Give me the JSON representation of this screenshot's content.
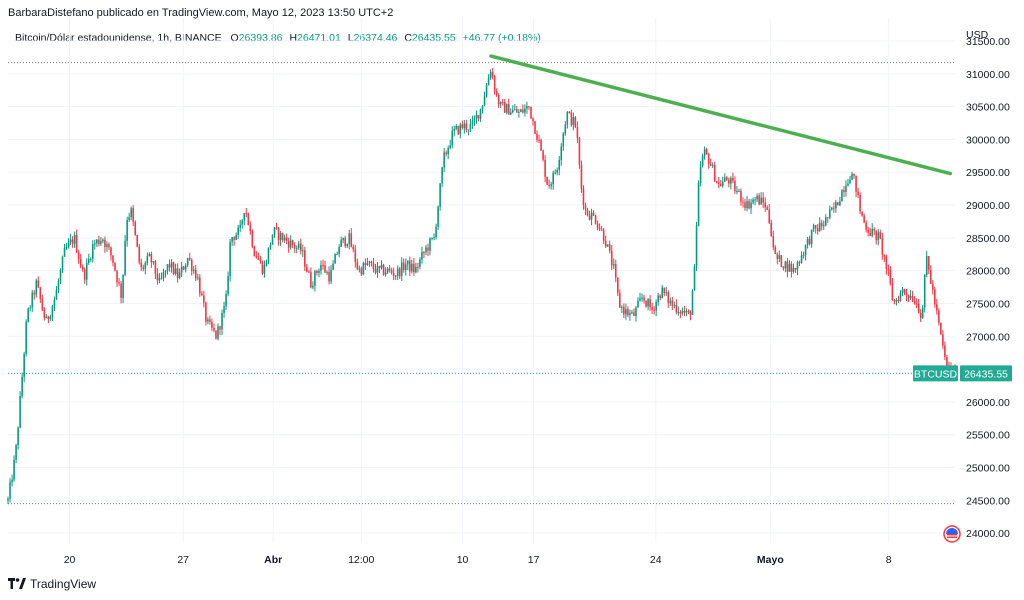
{
  "header": {
    "publisher_line": "BarbaraDistefano publicado en TradingView.com, Mayo 12, 2023 13:50 UTC+2"
  },
  "legend": {
    "symbol": "Bitcoin/Dólar estadounidense, 1h, BINANCE",
    "o_label": "O",
    "o_value": "26393.86",
    "h_label": "H",
    "h_value": "26471.01",
    "l_label": "L",
    "l_value": "26374.46",
    "c_label": "C",
    "c_value": "26435.55",
    "change": "+46.77 (+0.18%)"
  },
  "footer": {
    "brand": "TradingView"
  },
  "colors": {
    "up": "#089981",
    "down": "#f23645",
    "trendline": "#4caf50",
    "last_price": "#22ab94",
    "grid": "#f0f3fa"
  },
  "chart_data": {
    "type": "candlestick",
    "symbol": "BTCUSD",
    "currency": "USD",
    "timeframe": "1h",
    "y_ticks": [
      "31500.00",
      "31000.00",
      "30500.00",
      "30000.00",
      "29500.00",
      "29000.00",
      "28500.00",
      "28000.00",
      "27500.00",
      "27000.00",
      "26500.00",
      "26000.00",
      "25500.00",
      "25000.00",
      "24500.00",
      "24000.00"
    ],
    "ylim": [
      23850,
      31850
    ],
    "x_labels": [
      "20",
      "27",
      "Abr",
      "12:00",
      "10",
      "17",
      "24",
      "Mayo",
      "8"
    ],
    "x_label_pos": [
      0.065,
      0.185,
      0.28,
      0.373,
      0.48,
      0.555,
      0.684,
      0.805,
      0.93
    ],
    "last_price": 26435.55,
    "last_price_label": "26435.55",
    "symbol_tag": "BTCUSD",
    "dotted_levels": [
      31170,
      26435.55,
      24450
    ],
    "trendline": [
      [
        0.51,
        31270
      ],
      [
        0.995,
        29480
      ]
    ],
    "path": [
      [
        0.0,
        24500
      ],
      [
        0.008,
        25200
      ],
      [
        0.015,
        26400
      ],
      [
        0.02,
        27300
      ],
      [
        0.03,
        27800
      ],
      [
        0.04,
        27200
      ],
      [
        0.05,
        27600
      ],
      [
        0.06,
        28300
      ],
      [
        0.07,
        28500
      ],
      [
        0.08,
        27900
      ],
      [
        0.09,
        28400
      ],
      [
        0.1,
        28500
      ],
      [
        0.11,
        28200
      ],
      [
        0.12,
        27600
      ],
      [
        0.125,
        28800
      ],
      [
        0.13,
        28900
      ],
      [
        0.14,
        28000
      ],
      [
        0.15,
        28200
      ],
      [
        0.16,
        27800
      ],
      [
        0.17,
        28100
      ],
      [
        0.18,
        27900
      ],
      [
        0.19,
        28200
      ],
      [
        0.2,
        27900
      ],
      [
        0.21,
        27200
      ],
      [
        0.22,
        27000
      ],
      [
        0.23,
        27500
      ],
      [
        0.235,
        28500
      ],
      [
        0.245,
        28600
      ],
      [
        0.25,
        29000
      ],
      [
        0.26,
        28300
      ],
      [
        0.27,
        28000
      ],
      [
        0.28,
        28600
      ],
      [
        0.29,
        28500
      ],
      [
        0.3,
        28400
      ],
      [
        0.31,
        28300
      ],
      [
        0.32,
        27800
      ],
      [
        0.33,
        28100
      ],
      [
        0.34,
        27900
      ],
      [
        0.35,
        28400
      ],
      [
        0.36,
        28500
      ],
      [
        0.37,
        28000
      ],
      [
        0.38,
        28100
      ],
      [
        0.39,
        28000
      ],
      [
        0.4,
        28000
      ],
      [
        0.41,
        27950
      ],
      [
        0.42,
        28100
      ],
      [
        0.43,
        28000
      ],
      [
        0.44,
        28300
      ],
      [
        0.45,
        28500
      ],
      [
        0.455,
        29100
      ],
      [
        0.46,
        29700
      ],
      [
        0.47,
        30100
      ],
      [
        0.48,
        30200
      ],
      [
        0.49,
        30200
      ],
      [
        0.5,
        30500
      ],
      [
        0.51,
        31100
      ],
      [
        0.515,
        30700
      ],
      [
        0.52,
        30500
      ],
      [
        0.53,
        30450
      ],
      [
        0.54,
        30400
      ],
      [
        0.55,
        30500
      ],
      [
        0.56,
        30000
      ],
      [
        0.57,
        29300
      ],
      [
        0.575,
        29400
      ],
      [
        0.58,
        29600
      ],
      [
        0.59,
        30400
      ],
      [
        0.6,
        30200
      ],
      [
        0.605,
        29300
      ],
      [
        0.61,
        28900
      ],
      [
        0.62,
        28800
      ],
      [
        0.63,
        28500
      ],
      [
        0.64,
        28000
      ],
      [
        0.645,
        27500
      ],
      [
        0.65,
        27400
      ],
      [
        0.66,
        27300
      ],
      [
        0.67,
        27600
      ],
      [
        0.68,
        27400
      ],
      [
        0.69,
        27700
      ],
      [
        0.7,
        27500
      ],
      [
        0.71,
        27400
      ],
      [
        0.72,
        27300
      ],
      [
        0.725,
        28000
      ],
      [
        0.73,
        29500
      ],
      [
        0.735,
        29800
      ],
      [
        0.74,
        29700
      ],
      [
        0.75,
        29300
      ],
      [
        0.76,
        29400
      ],
      [
        0.77,
        29200
      ],
      [
        0.78,
        29000
      ],
      [
        0.79,
        29100
      ],
      [
        0.8,
        29000
      ],
      [
        0.805,
        28700
      ],
      [
        0.81,
        28200
      ],
      [
        0.82,
        28100
      ],
      [
        0.83,
        28000
      ],
      [
        0.84,
        28300
      ],
      [
        0.85,
        28600
      ],
      [
        0.86,
        28700
      ],
      [
        0.87,
        28900
      ],
      [
        0.875,
        29000
      ],
      [
        0.88,
        29200
      ],
      [
        0.89,
        29500
      ],
      [
        0.895,
        29300
      ],
      [
        0.9,
        28900
      ],
      [
        0.905,
        28700
      ],
      [
        0.91,
        28600
      ],
      [
        0.92,
        28500
      ],
      [
        0.93,
        27900
      ],
      [
        0.935,
        27500
      ],
      [
        0.945,
        27700
      ],
      [
        0.955,
        27600
      ],
      [
        0.96,
        27500
      ],
      [
        0.965,
        27300
      ],
      [
        0.97,
        28200
      ],
      [
        0.975,
        27800
      ],
      [
        0.98,
        27400
      ],
      [
        0.985,
        27000
      ],
      [
        0.99,
        26600
      ],
      [
        0.995,
        26435
      ]
    ]
  }
}
